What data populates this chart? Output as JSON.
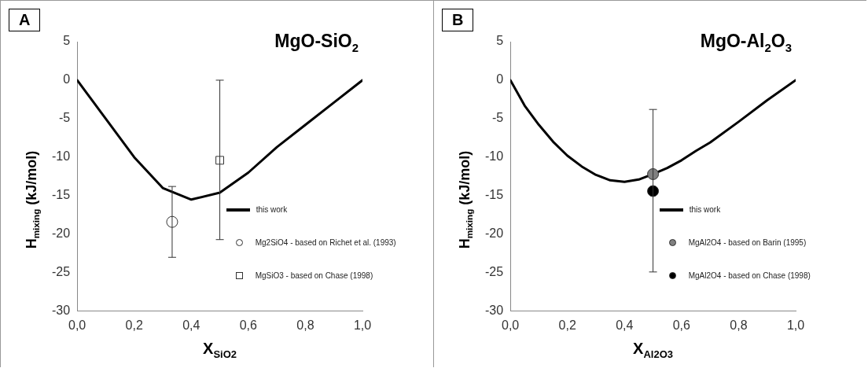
{
  "chart_data": [
    {
      "type": "line",
      "title": "MgO-SiO$_{2}$",
      "xlabel": "X$_{SiO2}$",
      "ylabel": "H$_{mixing}$  (kJ/mol)",
      "annotations": [
        "A"
      ],
      "xlim": [
        0,
        1
      ],
      "ylim": [
        -30,
        5
      ],
      "xticks": [
        {
          "value": 0,
          "label": "0,0"
        },
        {
          "value": 0.2,
          "label": "0,2"
        },
        {
          "value": 0.4,
          "label": "0,4"
        },
        {
          "value": 0.6,
          "label": "0,6"
        },
        {
          "value": 0.8,
          "label": "0,8"
        },
        {
          "value": 1,
          "label": "1,0"
        }
      ],
      "yticks": [
        5,
        0,
        -5,
        -10,
        -15,
        -20,
        -25,
        -30
      ],
      "grid": false,
      "legend": "right",
      "series": [
        {
          "name": "this work",
          "color": "#000000",
          "marker": "none",
          "x": [
            0,
            0.1,
            0.2,
            0.3,
            0.4,
            0.5,
            0.6,
            0.7,
            0.8,
            0.9,
            1
          ],
          "values": [
            0,
            -5,
            -10,
            -14,
            -15.5,
            -14.6,
            -12,
            -8.7,
            -5.8,
            -2.9,
            0
          ]
        },
        {
          "name": "Mg2SiO4 -  based on Richet et al. (1993)",
          "type": "scatter",
          "color": "#ffffff",
          "marker": "circle",
          "x": [
            0.333
          ],
          "values": [
            -18.4
          ],
          "errors": [
            [
              -23,
              -13.8
            ]
          ]
        },
        {
          "name": "MgSiO3 - based on Chase (1998)",
          "type": "scatter",
          "color": "#ffffff",
          "marker": "square",
          "x": [
            0.5
          ],
          "values": [
            -10.4
          ],
          "errors": [
            [
              -20.7,
              0
            ]
          ]
        }
      ]
    },
    {
      "type": "line",
      "title": "MgO-Al$_{2}$O$_{3}$",
      "xlabel": "X$_{Al2O3}$",
      "ylabel": "H$_{mixing}$  (kJ/mol)",
      "annotations": [
        "B"
      ],
      "xlim": [
        0,
        1
      ],
      "ylim": [
        -30,
        5
      ],
      "xticks": [
        {
          "value": 0,
          "label": "0,0"
        },
        {
          "value": 0.2,
          "label": "0,2"
        },
        {
          "value": 0.4,
          "label": "0,4"
        },
        {
          "value": 0.6,
          "label": "0,6"
        },
        {
          "value": 0.8,
          "label": "0,8"
        },
        {
          "value": 1,
          "label": "1,0"
        }
      ],
      "yticks": [
        5,
        0,
        -5,
        -10,
        -15,
        -20,
        -25,
        -30
      ],
      "grid": false,
      "legend": "right",
      "series": [
        {
          "name": "this work",
          "color": "#000000",
          "marker": "none",
          "x": [
            0,
            0.05,
            0.1,
            0.15,
            0.2,
            0.25,
            0.3,
            0.35,
            0.4,
            0.45,
            0.5,
            0.55,
            0.6,
            0.65,
            0.7,
            0.8,
            0.9,
            1
          ],
          "values": [
            0,
            -3.3,
            -5.8,
            -8,
            -9.8,
            -11.2,
            -12.3,
            -13,
            -13.2,
            -12.9,
            -12.2,
            -11.4,
            -10.4,
            -9.2,
            -8.1,
            -5.4,
            -2.6,
            0
          ]
        },
        {
          "name": "MgAl2O4 - based on Barin (1995)",
          "type": "scatter",
          "color": "#808080",
          "marker": "circle",
          "x": [
            0.5
          ],
          "values": [
            -12.2
          ]
        },
        {
          "name": "MgAl2O4 - based on Chase (1998)",
          "type": "scatter",
          "color": "#000000",
          "marker": "circle",
          "x": [
            0.5
          ],
          "values": [
            -14.4
          ],
          "errors": [
            [
              -24.9,
              -3.8
            ]
          ]
        }
      ]
    }
  ]
}
